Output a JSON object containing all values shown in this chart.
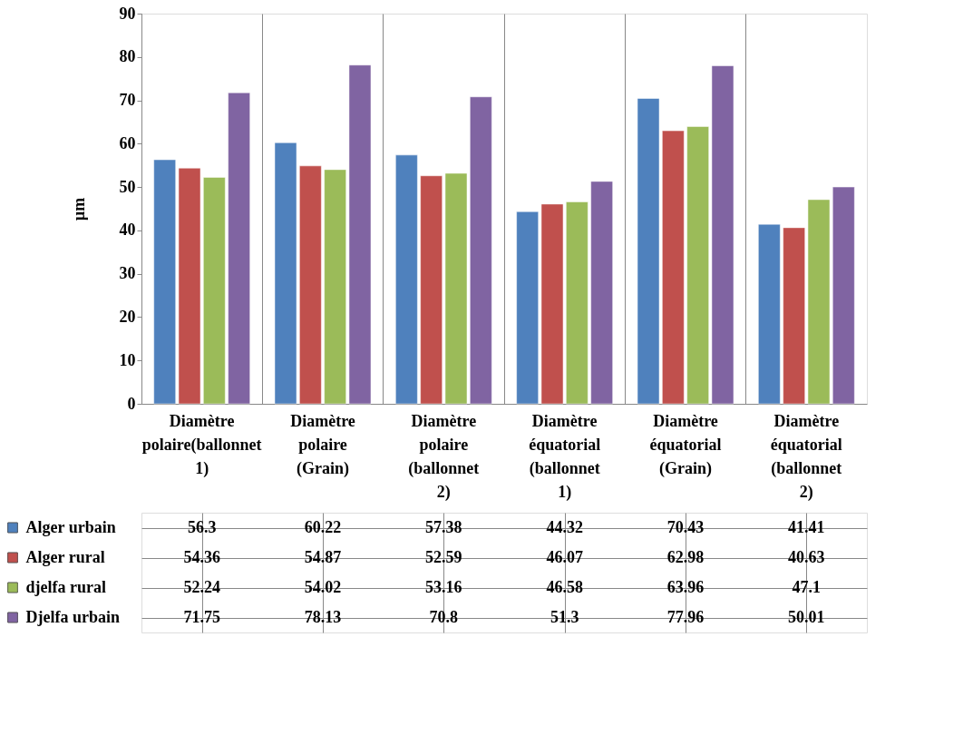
{
  "chart_data": {
    "type": "bar",
    "ylabel": "µm",
    "categories": [
      "Diamètre polaire(ballonnet 1)",
      "Diamètre polaire (Grain)",
      "Diamètre polaire (ballonnet 2)",
      "Diamètre équatorial (ballonnet 1)",
      "Diamètre équatorial (Grain)",
      "Diamètre équatorial (ballonnet 2)"
    ],
    "series": [
      {
        "name": "Alger urbain",
        "color": "#4f81bd",
        "values": [
          56.3,
          60.22,
          57.38,
          44.32,
          70.43,
          41.41
        ]
      },
      {
        "name": "Alger rural",
        "color": "#c0504d",
        "values": [
          54.36,
          54.87,
          52.59,
          46.07,
          62.98,
          40.63
        ]
      },
      {
        "name": "djelfa rural",
        "color": "#9bbb59",
        "values": [
          52.24,
          54.02,
          53.16,
          46.58,
          63.96,
          47.1
        ]
      },
      {
        "name": "Djelfa urbain",
        "color": "#8064a2",
        "values": [
          71.75,
          78.13,
          70.8,
          51.3,
          77.96,
          50.01
        ]
      }
    ],
    "ylim": [
      0,
      90
    ],
    "yticks": [
      0,
      10,
      20,
      30,
      40,
      50,
      60,
      70,
      80,
      90
    ],
    "grid": false,
    "legend": "bottom",
    "data_labels": true
  }
}
